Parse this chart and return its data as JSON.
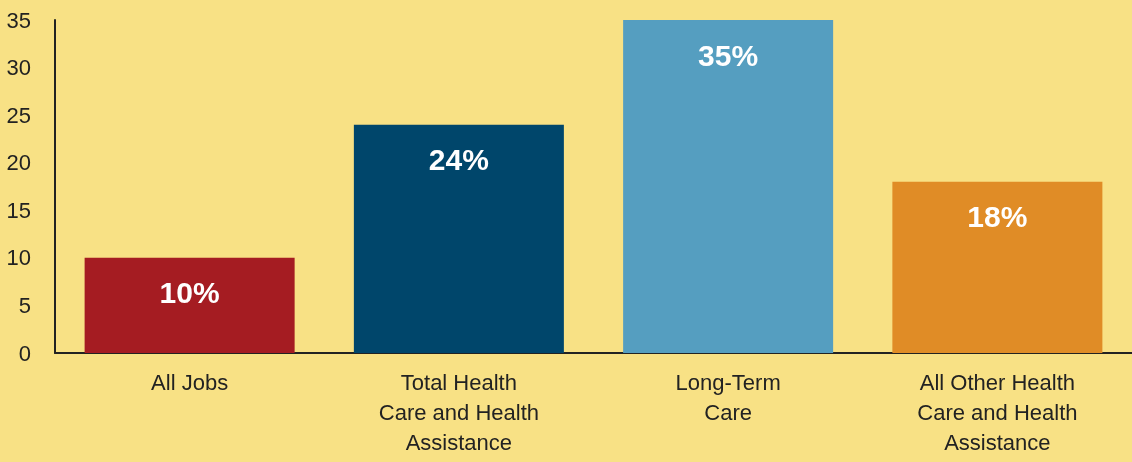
{
  "chart_data": {
    "type": "bar",
    "categories": [
      "All Jobs",
      "Total Health\nCare and Health\nAssistance",
      "Long-Term\nCare",
      "All Other Health\nCare and Health\nAssistance"
    ],
    "values": [
      10,
      24,
      35,
      18
    ],
    "colors": [
      "#a51c22",
      "#00466b",
      "#559ec0",
      "#e08c26"
    ],
    "value_labels": [
      "10%",
      "24%",
      "35%",
      "18%"
    ],
    "ylim": [
      0,
      35
    ],
    "yticks": [
      0,
      5,
      10,
      15,
      20,
      25,
      30,
      35
    ],
    "grid": false
  }
}
